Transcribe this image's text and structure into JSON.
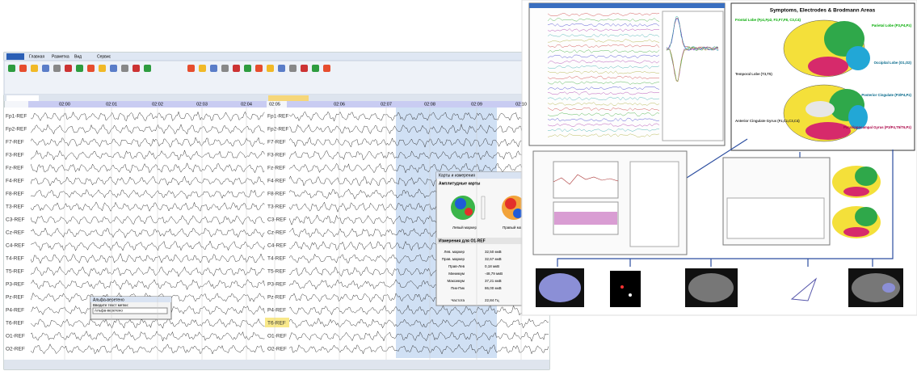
{
  "ribbon": {
    "tabs": [
      "Главная",
      "Разметка",
      "Вид",
      "Сервис"
    ]
  },
  "eeg": {
    "channels": [
      "Fp1-REF",
      "Fp2-REF",
      "F7-REF",
      "F3-REF",
      "Fz-REF",
      "F4-REF",
      "F8-REF",
      "T3-REF",
      "C3-REF",
      "Cz-REF",
      "C4-REF",
      "T4-REF",
      "T5-REF",
      "P3-REF",
      "Pz-REF",
      "P4-REF",
      "T6-REF",
      "O1-REF",
      "O2-REF"
    ],
    "times_left": [
      "02:00",
      "02:01",
      "02:02",
      "02:03",
      "02:04"
    ],
    "times_right": [
      "02:05",
      "02:06",
      "02:07",
      "02:08",
      "02:09",
      "02:10"
    ]
  },
  "popup": {
    "title": "Карты и измерения",
    "section": "Амплитудные карты",
    "left_marker": "Левый маркер",
    "right_marker": "Правый маркер",
    "measure_title": "Измерения для O1-REF",
    "rows": [
      [
        "Лев. маркер",
        "32,50 мкВ"
      ],
      [
        "Прав. маркер",
        "32,67 мкВ"
      ],
      [
        "Прав-Лев",
        "0,18 мкВ"
      ],
      [
        "Минимум",
        "-48,79 мкВ"
      ],
      [
        "Максимум",
        "37,21 мкВ"
      ],
      [
        "Пик-Пик",
        "86,00 мкВ"
      ],
      [
        "Частота",
        "22,84 Гц"
      ]
    ]
  },
  "dialog": {
    "title": "Альфа-веретено",
    "prompt": "Введите текст метки:",
    "input": "Альфа-веретено"
  },
  "diagram": {
    "title": "Symptoms, Electrodes & Brodmann Areas",
    "lobes": [
      "Frontal Lobe (Fp1,Fp2, F3,F7,F8, C3,C4)",
      "Parietal Lobe (P3,P4,Pz)",
      "Temporal Lobe (T3,T5)",
      "Occipital Lobe (O1,O2)",
      "Posterior Cingulate (P3/P4,Pz)",
      "Anterior Cingulate Gyrus (Fz,Cz,C3,C4)",
      "Parahippocampal Gyrus (P3/P4,T5/T6,Pz)"
    ]
  }
}
